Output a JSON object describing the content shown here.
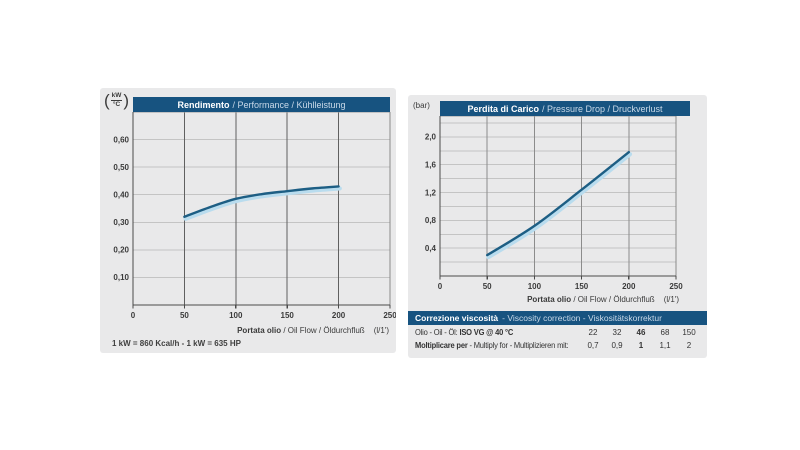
{
  "page": {
    "background": "#ffffff",
    "panel_background": "#e9e9ea",
    "accent_blue": "#175380",
    "curve_color": "#1d5e84",
    "curve_halo_color": "#b9dcee"
  },
  "left_panel": {
    "unit_numerator": "kW",
    "unit_denominator": "°C",
    "note": "1 kW = 860 Kcal/h - 1 kW = 635 HP"
  },
  "right_panel": {
    "unit": "(bar)"
  },
  "chart_data": [
    {
      "id": "performance",
      "type": "line",
      "title": "Rendimento / Performance / Kühlleistung",
      "title_bold": "Rendimento",
      "title_rest": "/ Performance / Kühlleistung",
      "ylabel": "kW/°C",
      "xlabel": "Portata olio / Oil Flow / Öldurchfluß (l/1')",
      "xlabel_bold": "Portata olio",
      "xlabel_rest": " / Oil Flow / Öldurchfluß",
      "xlabel_unit": "(l/1')",
      "x": [
        50,
        75,
        100,
        125,
        150,
        175,
        200
      ],
      "y": [
        0.32,
        0.355,
        0.385,
        0.402,
        0.413,
        0.423,
        0.43
      ],
      "xlim": [
        0,
        250
      ],
      "ylim": [
        0,
        0.7
      ],
      "x_ticks": [
        0,
        50,
        100,
        150,
        200,
        250
      ],
      "x_gridlines": [
        50,
        100,
        150,
        200
      ],
      "y_gridline_step": 0.1,
      "y_tick_values": [
        0.1,
        0.2,
        0.3,
        0.4,
        0.5,
        0.6
      ],
      "y_tick_labels": [
        "0,10",
        "0,20",
        "0,30",
        "0,40",
        "0,50",
        "0,60"
      ],
      "grid": true,
      "legend": false
    },
    {
      "id": "pressure-drop",
      "type": "line",
      "title": "Perdita di Carico / Pressure Drop / Druckverlust",
      "title_bold": "Perdita di Carico",
      "title_rest": "/ Pressure Drop / Druckverlust",
      "ylabel": "bar",
      "xlabel": "Portata olio / Oil Flow / Öldurchfluß (l/1')",
      "xlabel_bold": "Portata olio",
      "xlabel_rest": " / Oil Flow / Öldurchfluß",
      "xlabel_unit": "(l/1')",
      "x": [
        50,
        100,
        150,
        200
      ],
      "y": [
        0.3,
        0.72,
        1.24,
        1.78
      ],
      "xlim": [
        0,
        250
      ],
      "ylim": [
        0,
        2.3
      ],
      "x_ticks": [
        0,
        50,
        100,
        150,
        200,
        250
      ],
      "x_gridlines": [
        50,
        100,
        150,
        200
      ],
      "y_gridline_step": 0.2,
      "y_tick_values": [
        0.4,
        0.8,
        1.2,
        1.6,
        2.0
      ],
      "y_tick_labels": [
        "0,4",
        "0,8",
        "1,2",
        "1,6",
        "2,0"
      ],
      "grid": true,
      "legend": false
    }
  ],
  "viscosity_table": {
    "header_bold": "Correzione viscosità",
    "header_rest": "-  Viscosity correction  -  Viskositätskorrektur",
    "rows": [
      {
        "label_parts": [
          {
            "text": "Olio - Oil - Öl: ",
            "bold": false
          },
          {
            "text": "ISO VG @ 40 °C",
            "bold": true
          }
        ],
        "values": [
          "22",
          "32",
          "46",
          "68",
          "150"
        ],
        "bold_value_index": 2
      },
      {
        "label_parts": [
          {
            "text": "Moltiplicare per",
            "bold": true
          },
          {
            "text": " - Multiply for - Multiplizieren mit:",
            "bold": false
          }
        ],
        "values": [
          "0,7",
          "0,9",
          "1",
          "1,1",
          "2"
        ],
        "bold_value_index": 2
      }
    ]
  }
}
